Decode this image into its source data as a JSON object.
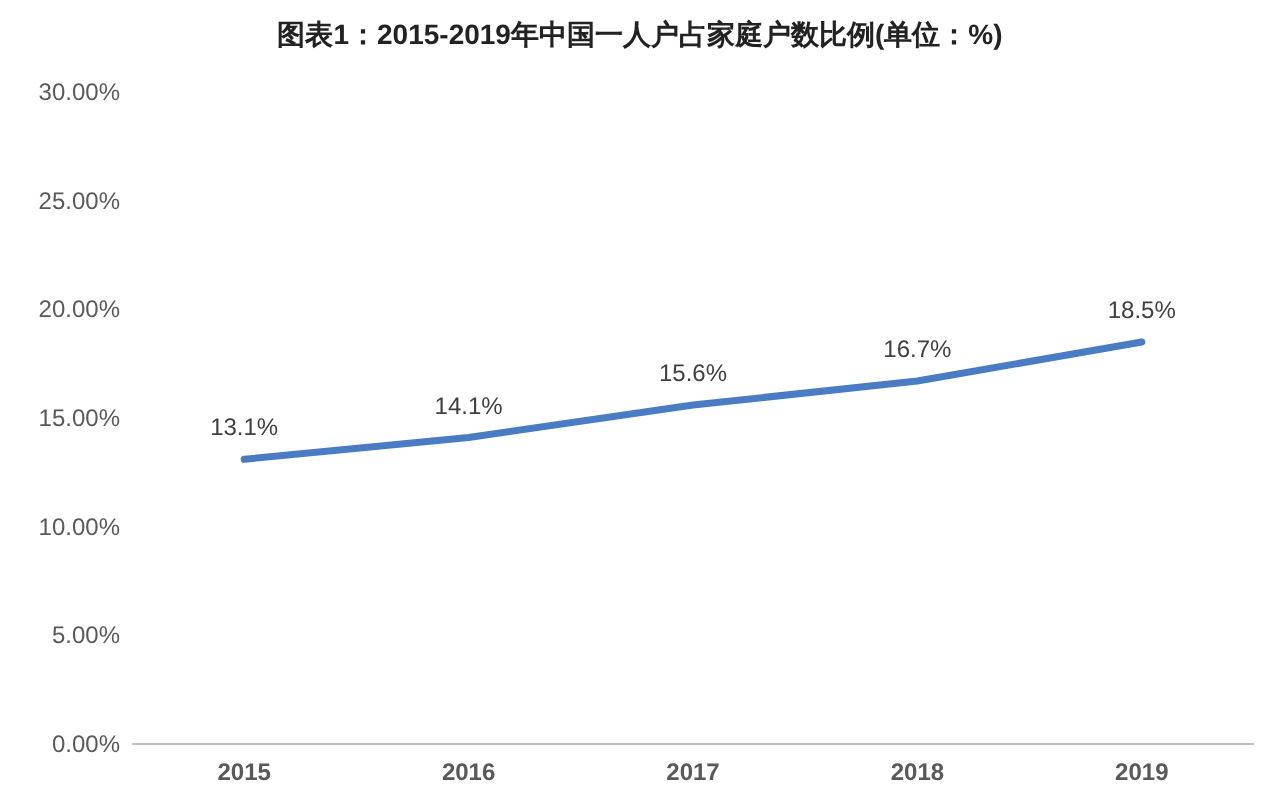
{
  "chart_data": {
    "type": "line",
    "title": "图表1：2015-2019年中国一人户占家庭户数比例(单位：%)",
    "categories": [
      "2015",
      "2016",
      "2017",
      "2018",
      "2019"
    ],
    "series": [
      {
        "color": "#4a7cc4",
        "values": [
          13.1,
          14.1,
          15.6,
          16.7,
          18.5
        ],
        "value_labels": [
          "13.1%",
          "14.1%",
          "15.6%",
          "16.7%",
          "18.5%"
        ]
      }
    ],
    "ylim": [
      0,
      30
    ],
    "yticks": [
      {
        "value": 0,
        "label": "0.00%"
      },
      {
        "value": 5,
        "label": "5.00%"
      },
      {
        "value": 10,
        "label": "10.00%"
      },
      {
        "value": 15,
        "label": "15.00%"
      },
      {
        "value": 20,
        "label": "20.00%"
      },
      {
        "value": 25,
        "label": "25.00%"
      },
      {
        "value": 30,
        "label": "30.00%"
      }
    ],
    "grid": false,
    "marker": "none",
    "line_style": "solid"
  }
}
